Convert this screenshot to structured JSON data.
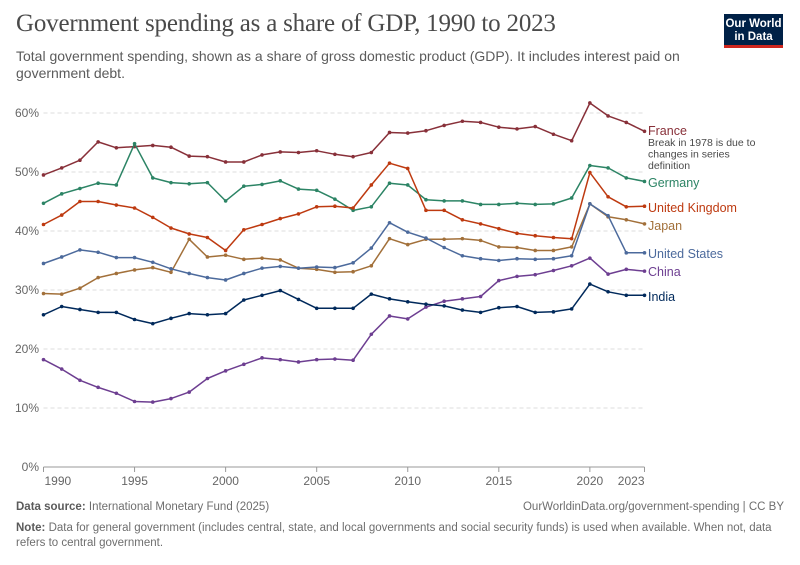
{
  "header": {
    "title": "Government spending as a share of GDP, 1990 to 2023",
    "subtitle": "Total government spending, shown as a share of gross domestic product (GDP). It includes interest paid on government debt.",
    "logo_text": "Our World in Data",
    "logo_colors": {
      "background": "#002147",
      "accent": "#ce261e"
    }
  },
  "footer": {
    "source_label": "Data source:",
    "source_text": "International Monetary Fund (2025)",
    "url_text": "OurWorldinData.org/government-spending | CC BY",
    "note_label": "Note:",
    "note_text": "Data for general government (includes central, state, and local governments and social security funds) is used when available. When not, data refers to central government."
  },
  "chart_data": {
    "type": "line",
    "title": "Government spending as a share of GDP, 1990 to 2023",
    "xlabel": "",
    "ylabel": "",
    "xlim": [
      1990,
      2023
    ],
    "ylim": [
      0,
      60
    ],
    "x_ticks": [
      "1990",
      "1995",
      "2000",
      "2005",
      "2010",
      "2015",
      "2020",
      "2023"
    ],
    "y_ticks": [
      "0%",
      "10%",
      "20%",
      "30%",
      "40%",
      "50%",
      "60%"
    ],
    "grid": "horizontal dashed",
    "legend": "inline labels at right end of lines",
    "annotation": "Break in 1978 is due to changes in series definition",
    "x": [
      1990,
      1991,
      1992,
      1993,
      1994,
      1995,
      1996,
      1997,
      1998,
      1999,
      2000,
      2001,
      2002,
      2003,
      2004,
      2005,
      2006,
      2007,
      2008,
      2009,
      2010,
      2011,
      2012,
      2013,
      2014,
      2015,
      2016,
      2017,
      2018,
      2019,
      2020,
      2021,
      2022,
      2023
    ],
    "series": [
      {
        "name": "France",
        "color": "#883039",
        "values": [
          49.5,
          50.7,
          52.0,
          55.1,
          54.1,
          54.3,
          54.5,
          54.2,
          52.7,
          52.6,
          51.7,
          51.7,
          52.9,
          53.4,
          53.3,
          53.6,
          53.0,
          52.6,
          53.3,
          56.7,
          56.6,
          57.0,
          57.9,
          58.6,
          58.4,
          57.6,
          57.3,
          57.7,
          56.4,
          55.3,
          61.7,
          59.5,
          58.4,
          56.9
        ]
      },
      {
        "name": "Germany",
        "color": "#2c8465",
        "values": [
          44.7,
          46.3,
          47.2,
          48.1,
          47.8,
          54.8,
          49.0,
          48.2,
          48.0,
          48.2,
          45.1,
          47.6,
          47.9,
          48.5,
          47.1,
          46.9,
          45.4,
          43.5,
          44.1,
          48.1,
          47.8,
          45.3,
          45.1,
          45.1,
          44.5,
          44.5,
          44.7,
          44.5,
          44.6,
          45.6,
          51.1,
          50.7,
          49.0,
          48.4
        ]
      },
      {
        "name": "United Kingdom",
        "color": "#be3a10",
        "values": [
          41.1,
          42.7,
          45.0,
          45.0,
          44.4,
          43.9,
          42.3,
          40.5,
          39.5,
          38.9,
          36.7,
          40.2,
          41.1,
          42.1,
          42.9,
          44.1,
          44.2,
          43.9,
          47.8,
          51.5,
          50.6,
          43.5,
          43.5,
          41.9,
          41.2,
          40.4,
          39.6,
          39.2,
          38.9,
          38.7,
          49.9,
          45.8,
          44.1,
          44.2
        ]
      },
      {
        "name": "Japan",
        "color": "#a2703a",
        "values": [
          29.4,
          29.3,
          30.3,
          32.1,
          32.8,
          33.4,
          33.8,
          33.0,
          38.6,
          35.6,
          35.9,
          35.2,
          35.4,
          35.1,
          33.7,
          33.5,
          33.0,
          33.1,
          34.1,
          38.7,
          37.7,
          38.6,
          38.6,
          38.7,
          38.4,
          37.3,
          37.2,
          36.7,
          36.7,
          37.3,
          44.6,
          42.4,
          41.9,
          41.2
        ]
      },
      {
        "name": "United States",
        "color": "#4c6a9c",
        "values": [
          34.5,
          35.6,
          36.8,
          36.4,
          35.5,
          35.5,
          34.7,
          33.6,
          32.8,
          32.1,
          31.7,
          32.8,
          33.7,
          34.0,
          33.7,
          33.9,
          33.8,
          34.6,
          37.1,
          41.4,
          39.8,
          38.8,
          37.2,
          35.8,
          35.3,
          35.0,
          35.3,
          35.2,
          35.3,
          35.8,
          44.6,
          42.6,
          36.3,
          36.3
        ]
      },
      {
        "name": "China",
        "color": "#6d3e91",
        "values": [
          18.2,
          16.6,
          14.7,
          13.5,
          12.5,
          11.1,
          11.0,
          11.6,
          12.7,
          15.0,
          16.3,
          17.4,
          18.5,
          18.2,
          17.8,
          18.2,
          18.3,
          18.1,
          22.5,
          25.6,
          25.1,
          27.1,
          28.1,
          28.5,
          28.9,
          31.6,
          32.3,
          32.6,
          33.3,
          34.1,
          35.4,
          32.7,
          33.5,
          33.2
        ]
      },
      {
        "name": "India",
        "color": "#00295b",
        "values": [
          25.8,
          27.2,
          26.7,
          26.2,
          26.2,
          25.0,
          24.3,
          25.2,
          26.0,
          25.8,
          26.0,
          28.3,
          29.1,
          29.9,
          28.4,
          26.9,
          26.9,
          26.9,
          29.3,
          28.5,
          28.0,
          27.6,
          27.3,
          26.6,
          26.2,
          27.0,
          27.2,
          26.2,
          26.3,
          26.8,
          31.0,
          29.7,
          29.1,
          29.1
        ]
      }
    ]
  }
}
